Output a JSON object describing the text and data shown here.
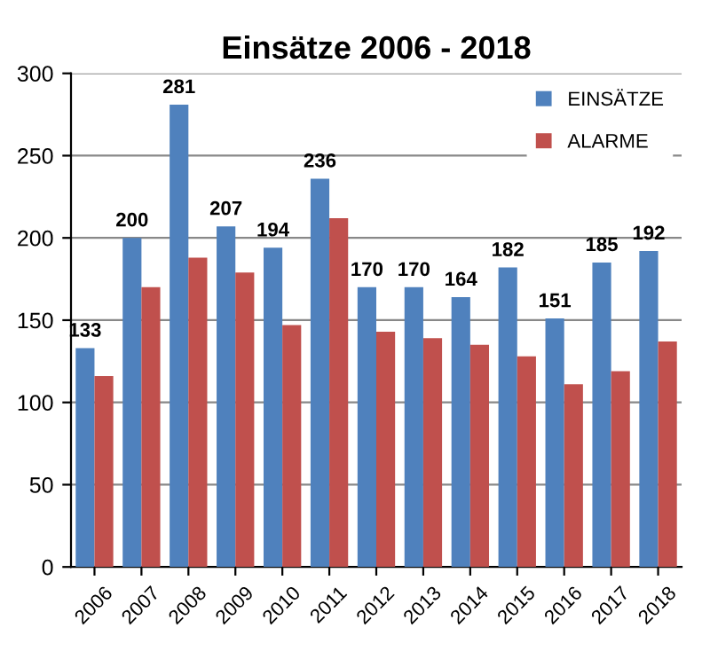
{
  "chart_data": {
    "type": "bar",
    "title": "Einsätze 2006 - 2018",
    "categories": [
      "2006",
      "2007",
      "2008",
      "2009",
      "2010",
      "2011",
      "2012",
      "2013",
      "2014",
      "2015",
      "2016",
      "2017",
      "2018"
    ],
    "series": [
      {
        "name": "EINSÄTZE",
        "color": "#4f81bd",
        "values": [
          133,
          200,
          281,
          207,
          194,
          236,
          170,
          170,
          164,
          182,
          151,
          185,
          192
        ],
        "value_labels": [
          "133",
          "200",
          "281",
          "207",
          "194",
          "236",
          "170",
          "170",
          "164",
          "182",
          "151",
          "185",
          "192"
        ]
      },
      {
        "name": "ALARME",
        "color": "#c0504d",
        "values": [
          116,
          170,
          188,
          179,
          147,
          212,
          143,
          139,
          135,
          128,
          111,
          119,
          137
        ]
      }
    ],
    "ylim": [
      0,
      300
    ],
    "yticks": [
      0,
      50,
      100,
      150,
      200,
      250,
      300
    ],
    "grid": "y",
    "legend": "top right"
  }
}
